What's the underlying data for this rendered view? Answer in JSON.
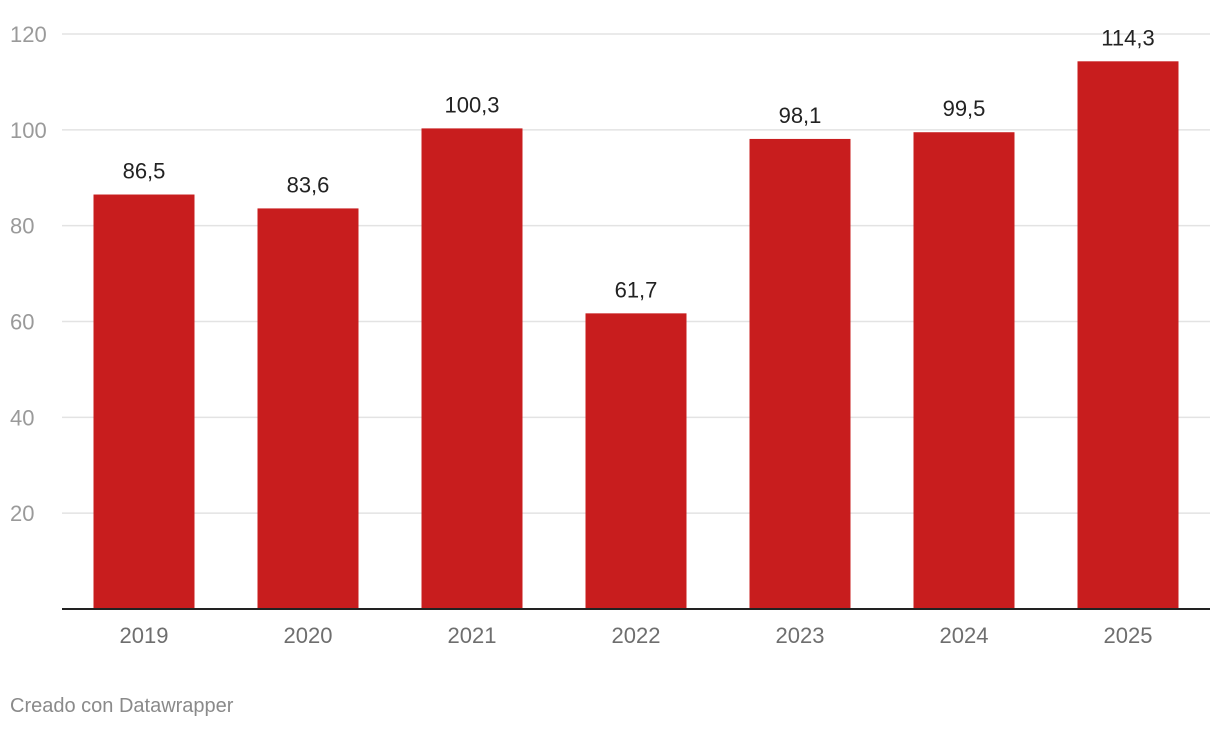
{
  "chart_data": {
    "type": "bar",
    "categories": [
      "2019",
      "2020",
      "2021",
      "2022",
      "2023",
      "2024",
      "2025"
    ],
    "values": [
      86.5,
      83.6,
      100.3,
      61.7,
      98.1,
      99.5,
      114.3
    ],
    "value_labels": [
      "86,5",
      "83,6",
      "100,3",
      "61,7",
      "98,1",
      "99,5",
      "114,3"
    ],
    "ylim": [
      0,
      120
    ],
    "yticks": [
      20,
      40,
      60,
      80,
      100,
      120
    ],
    "grid": true,
    "bar_color": "#c81d1e"
  },
  "footer": {
    "credit": "Creado con Datawrapper"
  }
}
